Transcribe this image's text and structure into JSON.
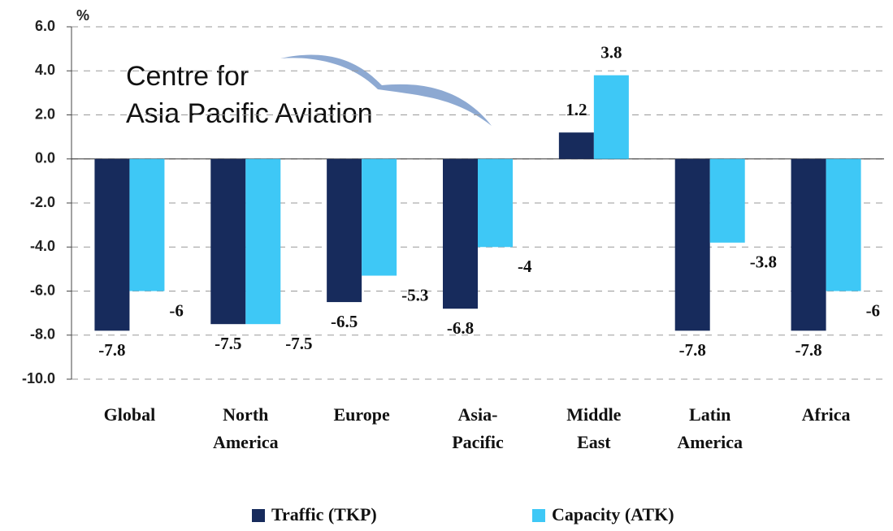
{
  "chart_data": {
    "type": "bar",
    "unit_label": "%",
    "logo": [
      "Centre for",
      "Asia Pacific Aviation"
    ],
    "categories": [
      "Global",
      "North America",
      "Europe",
      "Asia-Pacific",
      "Middle East",
      "Latin America",
      "Africa"
    ],
    "series": [
      {
        "name": "Traffic (TKP)",
        "color": "#172b5c",
        "values": [
          -7.8,
          -7.5,
          -6.5,
          -6.8,
          1.2,
          -7.8,
          -7.8
        ]
      },
      {
        "name": "Capacity (ATK)",
        "color": "#3ec8f6",
        "values": [
          -6,
          -7.5,
          -5.3,
          -4,
          3.8,
          -3.8,
          -6
        ]
      }
    ],
    "ylim": [
      -10,
      6
    ],
    "yticks": [
      {
        "value": -10,
        "label": "-10.0"
      },
      {
        "value": -8,
        "label": "-8.0"
      },
      {
        "value": -6,
        "label": "-6.0"
      },
      {
        "value": -4,
        "label": "-4.0"
      },
      {
        "value": -2,
        "label": "-2.0"
      },
      {
        "value": 0,
        "label": "0.0"
      },
      {
        "value": 2,
        "label": "2.0"
      },
      {
        "value": 4,
        "label": "4.0"
      },
      {
        "value": 6,
        "label": "6.0"
      }
    ],
    "grid": true,
    "legend": "bottom"
  }
}
